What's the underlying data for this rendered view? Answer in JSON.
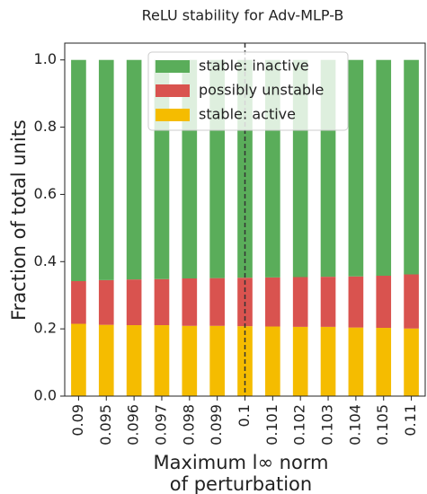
{
  "chart_data": {
    "type": "stacked-bar",
    "title": "ReLU stability for Adv-MLP-B",
    "xlabel": [
      "Maximum l∞ norm",
      "of perturbation"
    ],
    "ylabel": "Fraction of total units",
    "categories": [
      "0.09",
      "0.095",
      "0.096",
      "0.097",
      "0.098",
      "0.099",
      "0.1",
      "0.101",
      "0.102",
      "0.103",
      "0.104",
      "0.105",
      "0.11"
    ],
    "series": [
      {
        "name": "stable: active",
        "color": "#f5bc00",
        "values": [
          0.215,
          0.212,
          0.211,
          0.211,
          0.209,
          0.209,
          0.208,
          0.207,
          0.206,
          0.206,
          0.204,
          0.203,
          0.201
        ]
      },
      {
        "name": "possibly unstable",
        "color": "#d9534f",
        "values": [
          0.127,
          0.133,
          0.136,
          0.137,
          0.141,
          0.142,
          0.144,
          0.146,
          0.148,
          0.149,
          0.152,
          0.155,
          0.161
        ]
      },
      {
        "name": "stable: inactive",
        "color": "#5aad5a",
        "values": [
          0.658,
          0.655,
          0.653,
          0.652,
          0.65,
          0.649,
          0.648,
          0.647,
          0.646,
          0.645,
          0.644,
          0.642,
          0.638
        ]
      }
    ],
    "ylim": [
      0,
      1.05
    ],
    "yticks": [
      {
        "value": 0,
        "label": "0.0"
      },
      0.2,
      0.4,
      0.6,
      0.8,
      {
        "value": 1.0,
        "label": "1.0"
      }
    ],
    "vline": "0.1",
    "legend": "upper center"
  }
}
